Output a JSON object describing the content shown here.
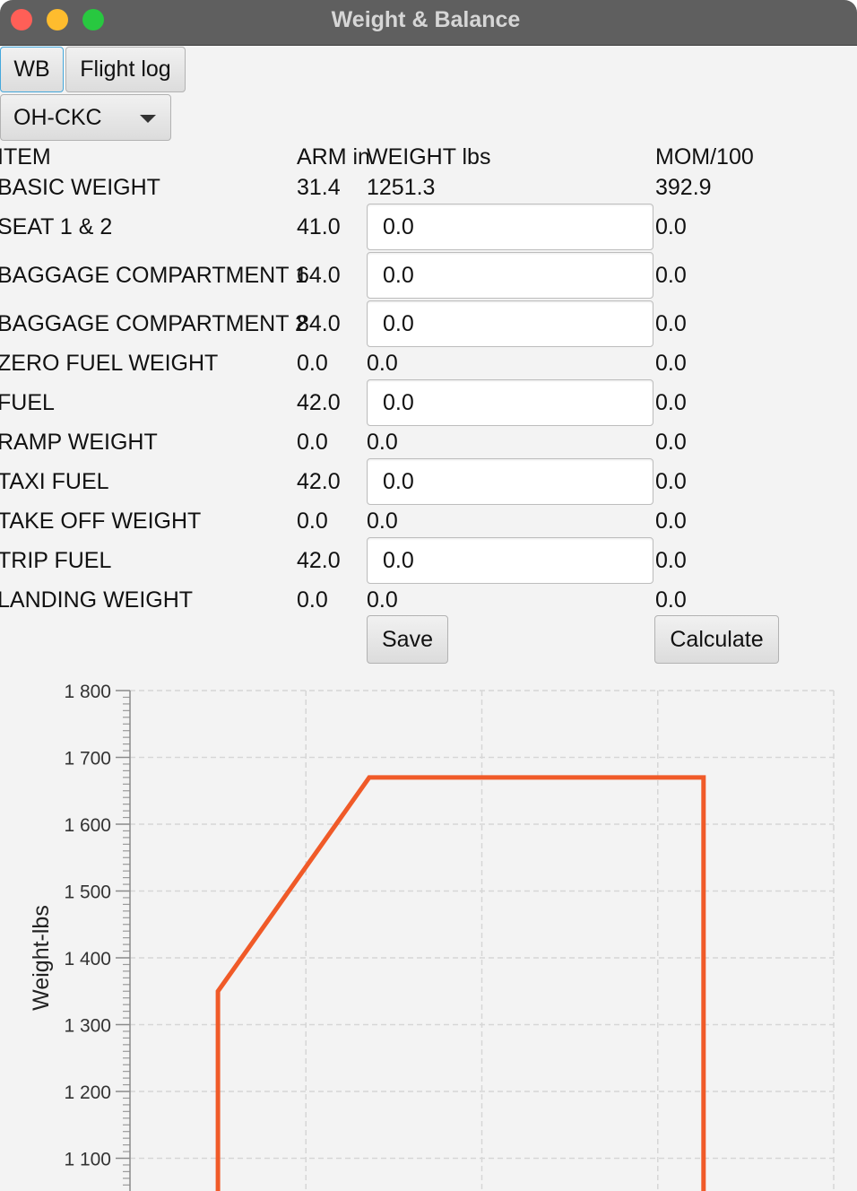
{
  "window": {
    "title": "Weight & Balance"
  },
  "tabs": [
    "WB",
    "Flight log"
  ],
  "aircraft_select": {
    "selected": "OH-CKC"
  },
  "table": {
    "headers": {
      "item": "ITEM",
      "arm": "ARM in",
      "weight": "WEIGHT lbs",
      "mom": "MOM/100"
    },
    "rows": [
      {
        "item": "BASIC WEIGHT",
        "arm": "31.4",
        "weight": "1251.3",
        "mom": "392.9",
        "editable": false
      },
      {
        "item": "SEAT 1 & 2",
        "arm": "41.0",
        "weight": "0.0",
        "mom": "0.0",
        "editable": true
      },
      {
        "item": "BAGGAGE COMPARTMENT 1",
        "arm": "64.0",
        "weight": "0.0",
        "mom": "0.0",
        "editable": true
      },
      {
        "item": "BAGGAGE COMPARTMENT 2",
        "arm": "84.0",
        "weight": "0.0",
        "mom": "0.0",
        "editable": true
      },
      {
        "item": "ZERO FUEL WEIGHT",
        "arm": "0.0",
        "weight": "0.0",
        "mom": "0.0",
        "editable": false
      },
      {
        "item": "FUEL",
        "arm": "42.0",
        "weight": "0.0",
        "mom": "0.0",
        "editable": true
      },
      {
        "item": "RAMP WEIGHT",
        "arm": "0.0",
        "weight": "0.0",
        "mom": "0.0",
        "editable": false
      },
      {
        "item": "TAXI FUEL",
        "arm": "42.0",
        "weight": "0.0",
        "mom": "0.0",
        "editable": true
      },
      {
        "item": "TAKE OFF WEIGHT",
        "arm": "0.0",
        "weight": "0.0",
        "mom": "0.0",
        "editable": false
      },
      {
        "item": "TRIP FUEL",
        "arm": "42.0",
        "weight": "0.0",
        "mom": "0.0",
        "editable": true
      },
      {
        "item": "LANDING WEIGHT",
        "arm": "0.0",
        "weight": "0.0",
        "mom": "0.0",
        "editable": false
      }
    ]
  },
  "buttons": {
    "save": "Save",
    "calculate": "Calculate"
  },
  "chart_data": {
    "type": "line",
    "ylabel": "Weight-lbs",
    "xlabel": "",
    "ylim": [
      1050,
      1800
    ],
    "yticks": [
      "1 800",
      "1 700",
      "1 600",
      "1 500",
      "1 400",
      "1 300",
      "1 200",
      "1 100"
    ],
    "ytick_values": [
      1800,
      1700,
      1600,
      1500,
      1400,
      1300,
      1200,
      1100
    ],
    "x_gridlines": 4,
    "grid": true,
    "series": [
      {
        "color": "#f05a28",
        "points_xfrac": [
          0.125,
          0.125,
          0.34,
          0.815,
          0.815
        ],
        "values": [
          1050,
          1350,
          1670,
          1670,
          1050
        ]
      }
    ]
  }
}
